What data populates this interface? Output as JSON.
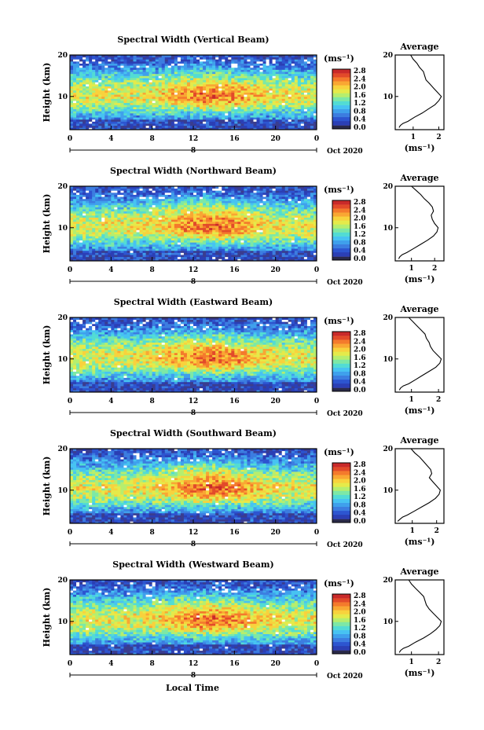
{
  "xlabel": "Local Time",
  "date_label": "Oct 2020",
  "day_label": "8",
  "ylabel": "Height (km)",
  "cb_unit": "(ms⁻¹)",
  "avg_title": "Average",
  "avg_xlabel": "(ms⁻¹)",
  "x_ticks": [
    "0",
    "4",
    "8",
    "12",
    "16",
    "20",
    "0"
  ],
  "y_ticks": [
    "10",
    "20"
  ],
  "cb_ticks": [
    "0.0",
    "0.4",
    "0.8",
    "1.2",
    "1.6",
    "2.0",
    "2.4",
    "2.8"
  ],
  "colorscale": [
    "#3a3d8f",
    "#2b3fb5",
    "#2d55d0",
    "#3c7de0",
    "#3fa0ec",
    "#47c3f2",
    "#52dcd4",
    "#7de8a6",
    "#b6ee6e",
    "#e5ea4a",
    "#f8d23d",
    "#f9a733",
    "#f47a2c",
    "#e24a2a",
    "#c92a2a"
  ],
  "chart_data": [
    {
      "type": "heatmap",
      "title": "Spectral Width (Vertical Beam)",
      "x_range": [
        0,
        24
      ],
      "y_range": [
        2,
        20
      ],
      "z_range": [
        0,
        3.0
      ],
      "avg_profile": {
        "x_ticks": [
          "1",
          "2"
        ],
        "x_range": [
          0.3,
          2.2
        ],
        "heights": [
          2.5,
          3,
          3.5,
          4,
          5,
          6,
          7,
          8,
          9,
          10,
          11,
          12,
          13,
          14,
          15,
          16,
          17,
          18,
          19,
          20
        ],
        "values": [
          0.45,
          0.5,
          0.6,
          0.8,
          1.05,
          1.35,
          1.6,
          1.85,
          2.0,
          2.1,
          1.95,
          1.8,
          1.65,
          1.5,
          1.45,
          1.4,
          1.25,
          1.15,
          1.0,
          0.9
        ]
      }
    },
    {
      "type": "heatmap",
      "title": "Spectral Width (Northward Beam)",
      "x_range": [
        0,
        24
      ],
      "y_range": [
        2,
        20
      ],
      "z_range": [
        0,
        3.0
      ],
      "avg_profile": {
        "x_ticks": [
          "1",
          "2"
        ],
        "x_range": [
          0.3,
          2.4
        ],
        "heights": [
          2.5,
          3,
          3.5,
          4,
          5,
          6,
          7,
          8,
          9,
          10,
          11,
          12,
          13,
          14,
          15,
          16,
          17,
          18,
          19,
          20
        ],
        "values": [
          0.45,
          0.5,
          0.6,
          0.8,
          1.1,
          1.4,
          1.7,
          1.95,
          2.1,
          2.15,
          2.0,
          1.9,
          1.85,
          1.95,
          1.9,
          1.75,
          1.55,
          1.4,
          1.2,
          1.0
        ]
      }
    },
    {
      "type": "heatmap",
      "title": "Spectral Width (Eastward Beam)",
      "x_range": [
        0,
        24
      ],
      "y_range": [
        2,
        20
      ],
      "z_range": [
        0,
        3.0
      ],
      "avg_profile": {
        "x_ticks": [
          "1",
          "2"
        ],
        "x_range": [
          0.4,
          2.2
        ],
        "heights": [
          2.5,
          3,
          3.5,
          4,
          5,
          6,
          7,
          8,
          9,
          10,
          11,
          12,
          13,
          14,
          15,
          16,
          17,
          18,
          19,
          20
        ],
        "values": [
          0.55,
          0.6,
          0.7,
          0.9,
          1.15,
          1.4,
          1.65,
          1.9,
          2.05,
          2.1,
          1.95,
          1.8,
          1.7,
          1.65,
          1.55,
          1.5,
          1.35,
          1.2,
          1.05,
          0.9
        ]
      }
    },
    {
      "type": "heatmap",
      "title": "Spectral Width (Southward Beam)",
      "x_range": [
        0,
        24
      ],
      "y_range": [
        2,
        20
      ],
      "z_range": [
        0,
        3.0
      ],
      "avg_profile": {
        "x_ticks": [
          "1",
          "2"
        ],
        "x_range": [
          0.3,
          2.3
        ],
        "heights": [
          2.5,
          3,
          3.5,
          4,
          5,
          6,
          7,
          8,
          9,
          10,
          11,
          12,
          13,
          14,
          15,
          16,
          17,
          18,
          19,
          20
        ],
        "values": [
          0.4,
          0.5,
          0.6,
          0.8,
          1.1,
          1.4,
          1.7,
          1.95,
          2.1,
          2.15,
          2.0,
          1.85,
          1.7,
          1.8,
          1.75,
          1.6,
          1.45,
          1.3,
          1.1,
          0.95
        ]
      }
    },
    {
      "type": "heatmap",
      "title": "Spectral Width (Westward Beam)",
      "x_range": [
        0,
        24
      ],
      "y_range": [
        2,
        20
      ],
      "z_range": [
        0,
        3.0
      ],
      "avg_profile": {
        "x_ticks": [
          "1",
          "2"
        ],
        "x_range": [
          0.4,
          2.2
        ],
        "heights": [
          2.5,
          3,
          3.5,
          4,
          5,
          6,
          7,
          8,
          9,
          10,
          11,
          12,
          13,
          14,
          15,
          16,
          17,
          18,
          19,
          20
        ],
        "values": [
          0.55,
          0.6,
          0.7,
          0.9,
          1.15,
          1.45,
          1.7,
          1.9,
          2.05,
          2.1,
          1.95,
          1.8,
          1.65,
          1.55,
          1.5,
          1.45,
          1.3,
          1.15,
          1.0,
          0.9
        ]
      }
    }
  ]
}
